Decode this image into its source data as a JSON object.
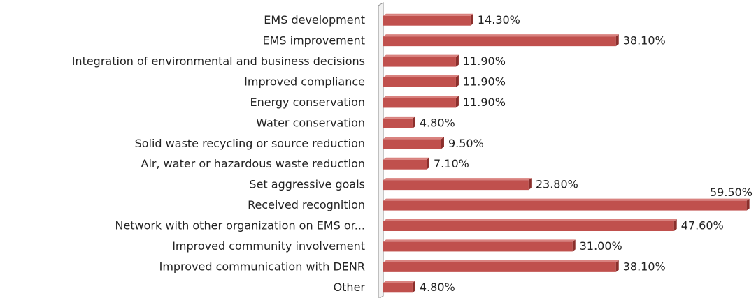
{
  "chart_data": {
    "type": "bar",
    "orientation": "horizontal",
    "categories": [
      "EMS development",
      "EMS improvement",
      "Integration of environmental and business decisions",
      "Improved compliance",
      "Energy conservation",
      "Water conservation",
      "Solid waste recycling or source reduction",
      "Air, water or hazardous waste reduction",
      "Set aggressive goals",
      "Received recognition",
      "Network with other organization on EMS or...",
      "Improved community involvement",
      "Improved communication with DENR",
      "Other"
    ],
    "values": [
      14.3,
      38.1,
      11.9,
      11.9,
      11.9,
      4.8,
      9.5,
      7.1,
      23.8,
      59.5,
      47.6,
      31.0,
      38.1,
      4.8
    ],
    "value_labels": [
      "14.30%",
      "38.10%",
      "11.90%",
      "11.90%",
      "11.90%",
      "4.80%",
      "9.50%",
      "7.10%",
      "23.80%",
      "59.50%",
      "47.60%",
      "31.00%",
      "38.10%",
      "4.80%"
    ],
    "color": "#c0504d",
    "xlim": [
      0,
      60
    ]
  }
}
